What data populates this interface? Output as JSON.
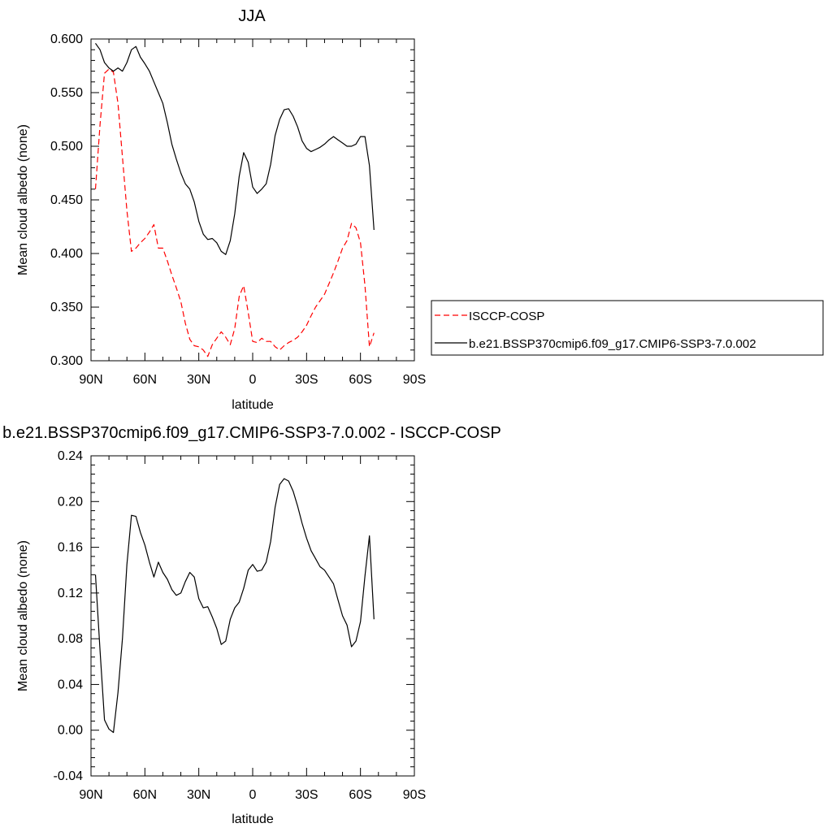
{
  "chart_data": [
    {
      "type": "line",
      "title": "JJA",
      "xlabel": "latitude",
      "ylabel": "Mean cloud albedo (none)",
      "xlim": [
        -90,
        90
      ],
      "ylim": [
        0.3,
        0.6
      ],
      "xticks": [
        -90,
        -60,
        -30,
        0,
        30,
        60,
        90
      ],
      "xtick_labels": [
        "90N",
        "60N",
        "30N",
        "0",
        "30S",
        "60S",
        "90S"
      ],
      "yticks": [
        0.3,
        0.35,
        0.4,
        0.45,
        0.5,
        0.55,
        0.6
      ],
      "ytick_labels": [
        "0.300",
        "0.350",
        "0.400",
        "0.450",
        "0.500",
        "0.550",
        "0.600"
      ],
      "grid": false,
      "legend_position": "right",
      "legend": [
        "ISCCP-COSP",
        "b.e21.BSSP370cmip6.f09_g17.CMIP6-SSP3-7.0.002"
      ],
      "x": [
        -87.5,
        -85,
        -82.5,
        -80,
        -77.5,
        -75,
        -72.5,
        -70,
        -67.5,
        -65,
        -62.5,
        -60,
        -57.5,
        -55,
        -52.5,
        -50,
        -47.5,
        -45,
        -42.5,
        -40,
        -37.5,
        -35,
        -32.5,
        -30,
        -27.5,
        -25,
        -22.5,
        -20,
        -17.5,
        -15,
        -12.5,
        -10,
        -7.5,
        -5,
        -2.5,
        0,
        2.5,
        5,
        7.5,
        10,
        12.5,
        15,
        17.5,
        20,
        22.5,
        25,
        27.5,
        30,
        32.5,
        35,
        37.5,
        40,
        42.5,
        45,
        47.5,
        50,
        52.5,
        55,
        57.5,
        60,
        62.5,
        65,
        67.5
      ],
      "series": [
        {
          "name": "ISCCP-COSP",
          "color": "#ff0000",
          "dash": "dashed",
          "values": [
            0.46,
            0.52,
            0.568,
            0.572,
            0.569,
            0.54,
            0.49,
            0.44,
            0.402,
            0.405,
            0.41,
            0.414,
            0.42,
            0.427,
            0.405,
            0.405,
            0.393,
            0.38,
            0.368,
            0.355,
            0.335,
            0.32,
            0.314,
            0.313,
            0.31,
            0.304,
            0.315,
            0.321,
            0.327,
            0.322,
            0.315,
            0.33,
            0.36,
            0.37,
            0.345,
            0.318,
            0.317,
            0.321,
            0.318,
            0.318,
            0.313,
            0.31,
            0.314,
            0.317,
            0.319,
            0.322,
            0.327,
            0.333,
            0.342,
            0.35,
            0.356,
            0.362,
            0.372,
            0.382,
            0.393,
            0.405,
            0.412,
            0.428,
            0.424,
            0.41,
            0.37,
            0.313,
            0.326
          ]
        },
        {
          "name": "b.e21.BSSP370cmip6.f09_g17.CMIP6-SSP3-7.0.002",
          "color": "#000000",
          "dash": "solid",
          "values": [
            0.596,
            0.59,
            0.578,
            0.573,
            0.57,
            0.573,
            0.57,
            0.578,
            0.59,
            0.593,
            0.583,
            0.577,
            0.57,
            0.56,
            0.55,
            0.54,
            0.522,
            0.502,
            0.488,
            0.475,
            0.465,
            0.46,
            0.448,
            0.43,
            0.418,
            0.413,
            0.414,
            0.41,
            0.402,
            0.399,
            0.412,
            0.437,
            0.472,
            0.494,
            0.485,
            0.462,
            0.456,
            0.46,
            0.465,
            0.483,
            0.51,
            0.525,
            0.534,
            0.535,
            0.528,
            0.518,
            0.505,
            0.498,
            0.495,
            0.497,
            0.499,
            0.502,
            0.506,
            0.509,
            0.506,
            0.503,
            0.5,
            0.5,
            0.502,
            0.509,
            0.509,
            0.482,
            0.422
          ]
        }
      ]
    },
    {
      "type": "line",
      "title": "b.e21.BSSP370cmip6.f09_g17.CMIP6-SSP3-7.0.002 - ISCCP-COSP",
      "xlabel": "latitude",
      "ylabel": "Mean cloud albedo (none)",
      "xlim": [
        -90,
        90
      ],
      "ylim": [
        -0.04,
        0.24
      ],
      "xticks": [
        -90,
        -60,
        -30,
        0,
        30,
        60,
        90
      ],
      "xtick_labels": [
        "90N",
        "60N",
        "30N",
        "0",
        "30S",
        "60S",
        "90S"
      ],
      "yticks": [
        -0.04,
        0.0,
        0.04,
        0.08,
        0.12,
        0.16,
        0.2,
        0.24
      ],
      "ytick_labels": [
        "-0.04",
        "0.00",
        "0.04",
        "0.08",
        "0.12",
        "0.16",
        "0.20",
        "0.24"
      ],
      "grid": false,
      "x": [
        -87.5,
        -85,
        -82.5,
        -80,
        -77.5,
        -75,
        -72.5,
        -70,
        -67.5,
        -65,
        -62.5,
        -60,
        -57.5,
        -55,
        -52.5,
        -50,
        -47.5,
        -45,
        -42.5,
        -40,
        -37.5,
        -35,
        -32.5,
        -30,
        -27.5,
        -25,
        -22.5,
        -20,
        -17.5,
        -15,
        -12.5,
        -10,
        -7.5,
        -5,
        -2.5,
        0,
        2.5,
        5,
        7.5,
        10,
        12.5,
        15,
        17.5,
        20,
        22.5,
        25,
        27.5,
        30,
        32.5,
        35,
        37.5,
        40,
        42.5,
        45,
        47.5,
        50,
        52.5,
        55,
        57.5,
        60,
        62.5,
        65,
        67.5
      ],
      "series": [
        {
          "color": "#000000",
          "dash": "solid",
          "values": [
            0.136,
            0.07,
            0.009,
            0.001,
            -0.002,
            0.033,
            0.08,
            0.145,
            0.188,
            0.187,
            0.173,
            0.162,
            0.147,
            0.134,
            0.147,
            0.138,
            0.132,
            0.123,
            0.118,
            0.12,
            0.13,
            0.138,
            0.134,
            0.115,
            0.107,
            0.108,
            0.099,
            0.089,
            0.075,
            0.078,
            0.097,
            0.107,
            0.112,
            0.124,
            0.14,
            0.145,
            0.139,
            0.14,
            0.147,
            0.165,
            0.195,
            0.215,
            0.22,
            0.218,
            0.209,
            0.196,
            0.181,
            0.168,
            0.157,
            0.15,
            0.143,
            0.14,
            0.134,
            0.128,
            0.114,
            0.1,
            0.092,
            0.073,
            0.078,
            0.095,
            0.135,
            0.17,
            0.097
          ]
        }
      ]
    }
  ]
}
